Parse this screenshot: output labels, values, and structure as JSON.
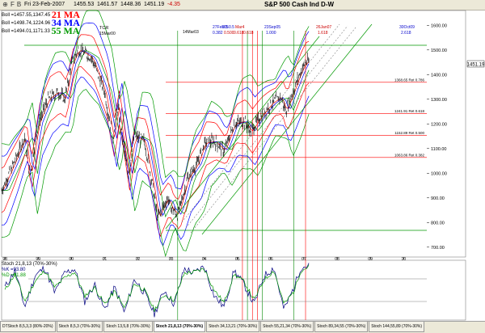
{
  "toolbar": {
    "icons": [
      "pushpin-icon",
      "chart-type-icon"
    ],
    "icon_f": "F",
    "icon_b": "B",
    "date": "Fri 23-Feb-2007",
    "open": "1455.53",
    "high": "1461.57",
    "low": "1448.36",
    "close": "1451.19",
    "change": "-4.35"
  },
  "chart": {
    "title": "S&P 500 Cash Ind D-W",
    "legend": [
      {
        "values": "Boll =1457.55,1347.45",
        "ma": "21 MA",
        "color": "#ff0000"
      },
      {
        "values": "Boll =1498.74,1224.96",
        "ma": "34 MA",
        "color": "#0000ff"
      },
      {
        "values": "Boll =1494.01,1171.33",
        "ma": "55 MA",
        "color": "#009900"
      }
    ],
    "price_label": "1451.19",
    "annotations": {
      "tcr": "TCR",
      "tcr_date": "15Mar00",
      "mar03": "14Mar03",
      "feb05": "27Feb05",
      "ratio_a": "0.382",
      "date_b": "0.500",
      "date_c": "0.618",
      "ratio_d": "0.618",
      "sep05": "23Sep05",
      "sep05_val": "1.000",
      "jan07": "26Jan07",
      "jan07_val": "1.618",
      "oct09": "30Oct09",
      "oct09_val": "2.618",
      "hdr_2": "0.5",
      "hdr_3": "0.5",
      "hdr_4": "Mar4"
    },
    "fib_levels": [
      {
        "label": "1368.65 Ret 0.786",
        "value": 1368.65
      },
      {
        "label": "1241.91 Ret 0.618",
        "value": 1241.91
      },
      {
        "label": "1152.89 Ret 0.500",
        "value": 1152.89
      },
      {
        "label": "1063.86 Ret 0.382",
        "value": 1063.86
      }
    ]
  },
  "chart_data": {
    "type": "line",
    "y_ticks": [
      "1600.00",
      "1500.00",
      "1400.00",
      "1300.00",
      "1200.00",
      "1100.00",
      "1000.00",
      "900.00",
      "800.00",
      "700.00"
    ],
    "y_values": [
      1600,
      1500,
      1400,
      1300,
      1200,
      1100,
      1000,
      900,
      800,
      700
    ],
    "x_ticks": [
      "98",
      "99",
      "00",
      "01",
      "02",
      "03",
      "04",
      "05",
      "06",
      "07",
      "08",
      "09",
      "10"
    ],
    "ylim": [
      660,
      1660
    ],
    "xlim": [
      1997.9,
      2010.7
    ],
    "price_series": [
      [
        1997.9,
        930
      ],
      [
        1998.3,
        1050
      ],
      [
        1998.6,
        1150
      ],
      [
        1998.75,
        990
      ],
      [
        1999.0,
        1200
      ],
      [
        1999.3,
        1300
      ],
      [
        1999.6,
        1330
      ],
      [
        1999.8,
        1300
      ],
      [
        2000.0,
        1440
      ],
      [
        2000.2,
        1500
      ],
      [
        2000.35,
        1490
      ],
      [
        2000.6,
        1470
      ],
      [
        2000.75,
        1420
      ],
      [
        2001.0,
        1330
      ],
      [
        2001.25,
        1140
      ],
      [
        2001.4,
        1270
      ],
      [
        2001.7,
        990
      ],
      [
        2001.9,
        1150
      ],
      [
        2002.2,
        1130
      ],
      [
        2002.45,
        950
      ],
      [
        2002.6,
        820
      ],
      [
        2002.9,
        900
      ],
      [
        2003.0,
        860
      ],
      [
        2003.2,
        830
      ],
      [
        2003.5,
        980
      ],
      [
        2003.8,
        1040
      ],
      [
        2004.0,
        1120
      ],
      [
        2004.3,
        1130
      ],
      [
        2004.6,
        1090
      ],
      [
        2004.9,
        1200
      ],
      [
        2005.2,
        1210
      ],
      [
        2005.4,
        1170
      ],
      [
        2005.7,
        1230
      ],
      [
        2006.0,
        1280
      ],
      [
        2006.3,
        1310
      ],
      [
        2006.45,
        1250
      ],
      [
        2006.7,
        1340
      ],
      [
        2006.9,
        1410
      ],
      [
        2007.05,
        1450
      ],
      [
        2007.15,
        1451.19
      ]
    ],
    "stochastic": {
      "params": "Stoch 21,8,13 (70%-30%)",
      "k_label": "%K =93.80",
      "d_label": "%D =91.88",
      "ylim": [
        0,
        100
      ],
      "levels": [
        70,
        30
      ],
      "k_series": [
        [
          1998.0,
          55
        ],
        [
          1998.3,
          85
        ],
        [
          1998.6,
          20
        ],
        [
          1998.9,
          75
        ],
        [
          1999.2,
          90
        ],
        [
          1999.5,
          45
        ],
        [
          1999.8,
          80
        ],
        [
          2000.1,
          88
        ],
        [
          2000.4,
          30
        ],
        [
          2000.7,
          60
        ],
        [
          2001.0,
          15
        ],
        [
          2001.3,
          55
        ],
        [
          2001.6,
          10
        ],
        [
          2001.9,
          70
        ],
        [
          2002.2,
          45
        ],
        [
          2002.5,
          8
        ],
        [
          2002.8,
          50
        ],
        [
          2003.1,
          25
        ],
        [
          2003.4,
          88
        ],
        [
          2003.7,
          80
        ],
        [
          2004.0,
          92
        ],
        [
          2004.3,
          40
        ],
        [
          2004.6,
          20
        ],
        [
          2004.9,
          85
        ],
        [
          2005.2,
          60
        ],
        [
          2005.5,
          25
        ],
        [
          2005.8,
          75
        ],
        [
          2006.1,
          90
        ],
        [
          2006.4,
          15
        ],
        [
          2006.7,
          55
        ],
        [
          2006.9,
          90
        ],
        [
          2007.15,
          93.8
        ]
      ],
      "d_series": [
        [
          1998.0,
          50
        ],
        [
          1998.3,
          78
        ],
        [
          1998.6,
          30
        ],
        [
          1998.9,
          65
        ],
        [
          1999.2,
          85
        ],
        [
          1999.5,
          55
        ],
        [
          1999.8,
          72
        ],
        [
          2000.1,
          82
        ],
        [
          2000.4,
          40
        ],
        [
          2000.7,
          55
        ],
        [
          2001.0,
          25
        ],
        [
          2001.3,
          48
        ],
        [
          2001.6,
          18
        ],
        [
          2001.9,
          62
        ],
        [
          2002.2,
          50
        ],
        [
          2002.5,
          15
        ],
        [
          2002.8,
          42
        ],
        [
          2003.1,
          32
        ],
        [
          2003.4,
          80
        ],
        [
          2003.7,
          82
        ],
        [
          2004.0,
          88
        ],
        [
          2004.3,
          50
        ],
        [
          2004.6,
          28
        ],
        [
          2004.9,
          78
        ],
        [
          2005.2,
          65
        ],
        [
          2005.5,
          32
        ],
        [
          2005.8,
          68
        ],
        [
          2006.1,
          85
        ],
        [
          2006.4,
          25
        ],
        [
          2006.7,
          48
        ],
        [
          2006.9,
          84
        ],
        [
          2007.15,
          91.88
        ]
      ]
    }
  },
  "tabs": [
    {
      "label": "DTStoch 8,5,3,3 (80%-20%)",
      "active": false
    },
    {
      "label": "Stoch 8,5,3 (70%-30%)",
      "active": false
    },
    {
      "label": "Stoch 13,5,8 (70%-30%)",
      "active": false
    },
    {
      "label": "Stoch 21,8,13 (70%-30%)",
      "active": true
    },
    {
      "label": "Stoch 34,13,21 (70%-30%)",
      "active": false
    },
    {
      "label": "Stoch 55,21,34 (70%-30%)",
      "active": false
    },
    {
      "label": "Stoch 89,34,55 (70%-30%)",
      "active": false
    },
    {
      "label": "Stoch 144,55,89 (70%-30%)",
      "active": false
    }
  ]
}
